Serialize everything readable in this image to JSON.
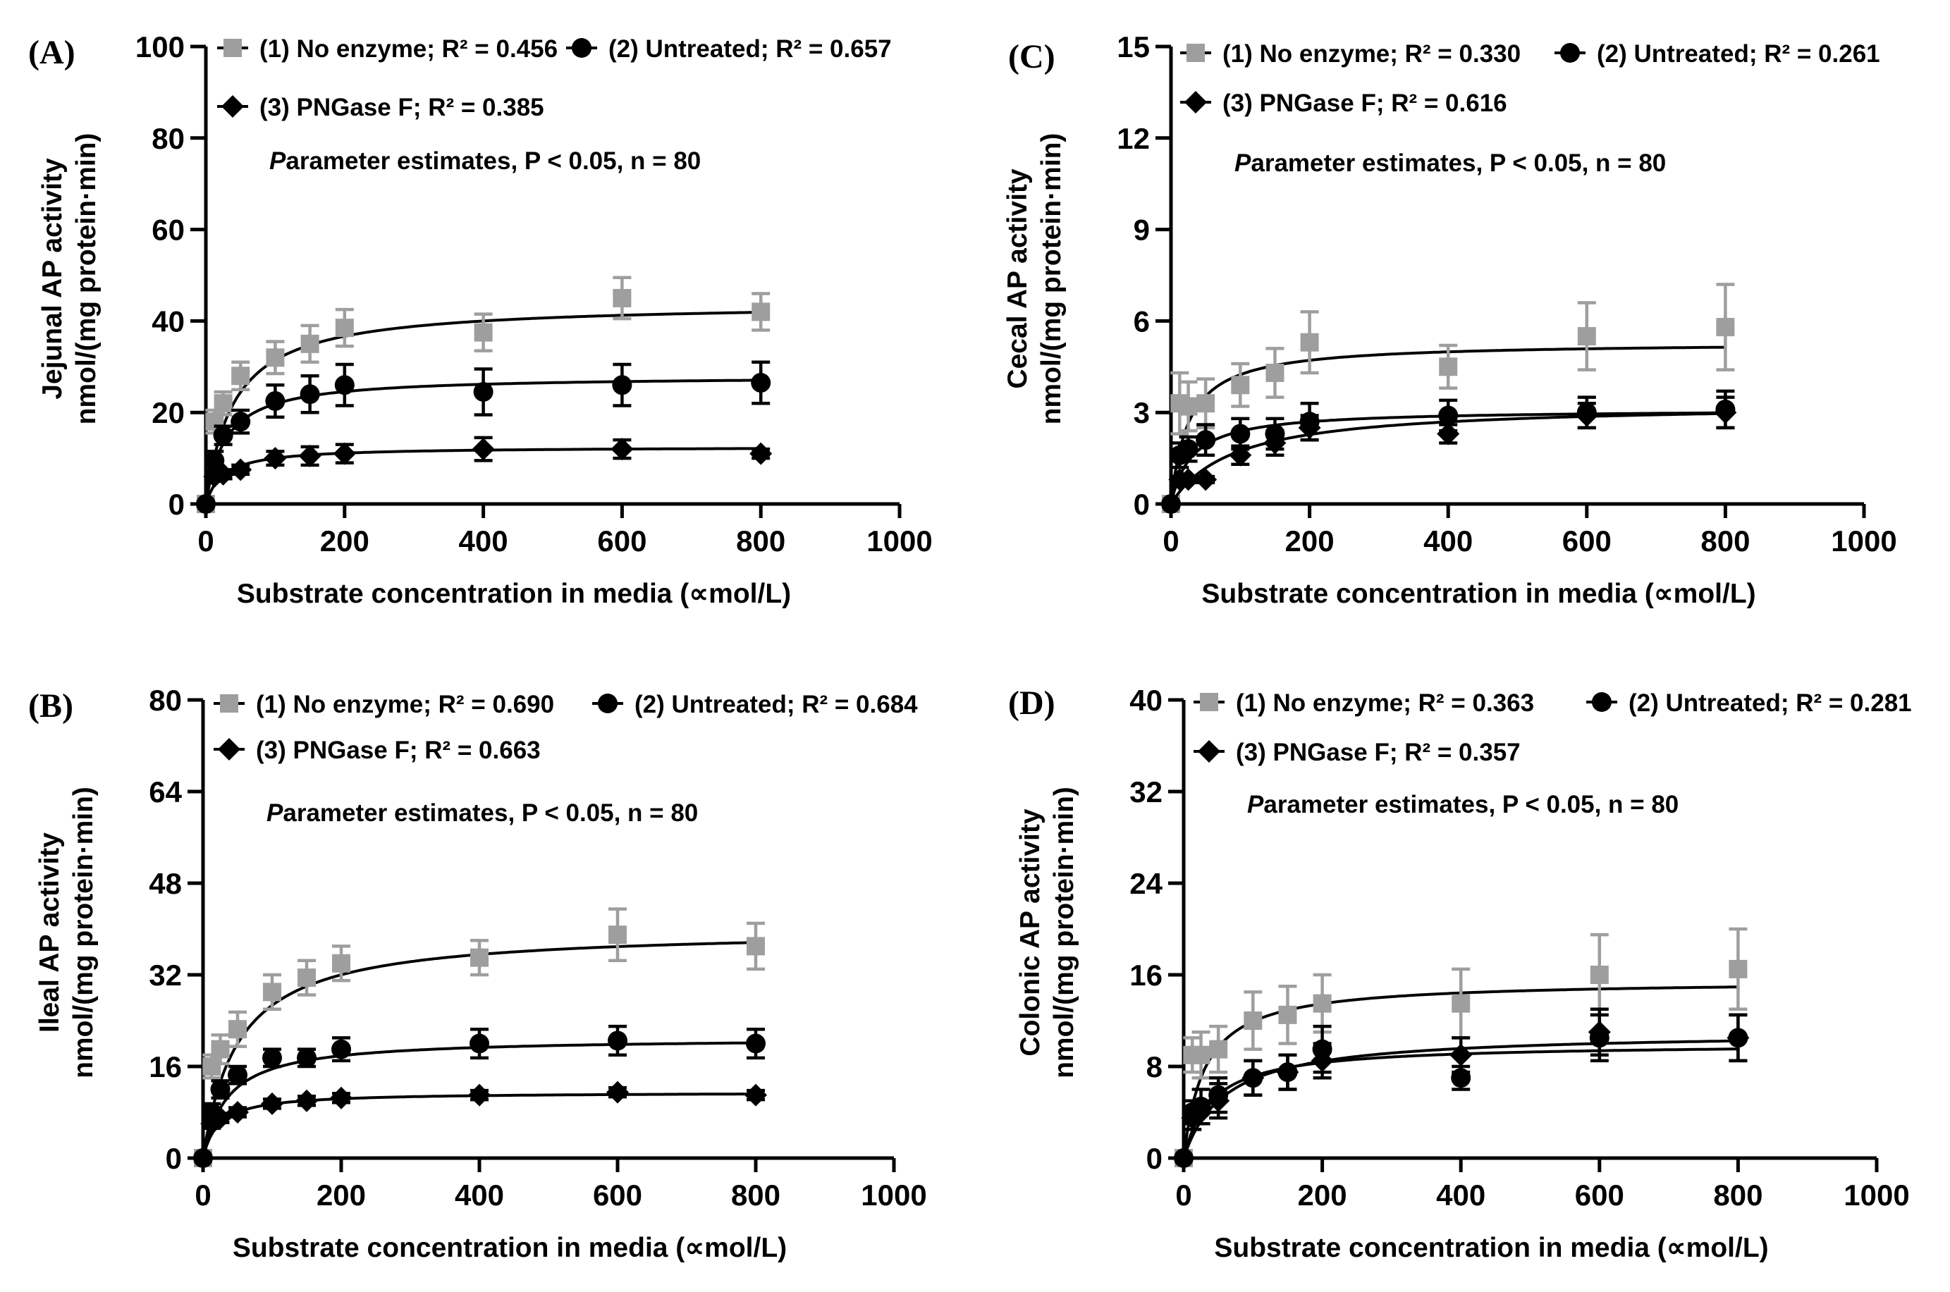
{
  "chart_data": [
    {
      "type": "scatter",
      "panel": "(A)",
      "ylabel_lines": [
        "Jejunal AP activity",
        "nmol/(mg protein·min)"
      ],
      "xlabel": "Substrate concentration in media (∝mol/L)",
      "xlim": [
        0,
        1000
      ],
      "xticks": [
        0,
        200,
        400,
        600,
        800,
        1000
      ],
      "ylim": [
        0,
        100
      ],
      "yticks": [
        0,
        20,
        40,
        60,
        80,
        100
      ],
      "annotation": "Parameter estimates, P < 0.05, n = 80",
      "series": [
        {
          "name": "(1) No enzyme;",
          "r2": "R² = 0.456",
          "marker": "square",
          "color": "#9e9e9e",
          "x": [
            0,
            12.5,
            25,
            50,
            100,
            150,
            200,
            400,
            600,
            800
          ],
          "y": [
            0,
            18,
            22,
            28,
            32,
            35,
            38.5,
            37.5,
            45,
            42
          ],
          "err": [
            0,
            2.5,
            2.5,
            3,
            3.5,
            4,
            4,
            4,
            4.5,
            4
          ],
          "fit": {
            "vmax": 44,
            "km": 40
          }
        },
        {
          "name": "(2) Untreated;",
          "r2": "R² = 0.657",
          "marker": "circle",
          "color": "#000000",
          "x": [
            0,
            12.5,
            25,
            50,
            100,
            150,
            200,
            400,
            600,
            800
          ],
          "y": [
            0,
            9.5,
            15,
            18,
            22.5,
            24,
            26,
            24.5,
            26,
            26.5
          ],
          "err": [
            0,
            2,
            2,
            2.5,
            3.5,
            4,
            4.5,
            5,
            4.5,
            4.5
          ],
          "fit": {
            "vmax": 28,
            "km": 28
          }
        },
        {
          "name": "(3) PNGase F;",
          "r2": "R² = 0.385",
          "marker": "diamond",
          "color": "#000000",
          "x": [
            0,
            12.5,
            25,
            50,
            100,
            150,
            200,
            400,
            600,
            800
          ],
          "y": [
            0,
            6,
            6.5,
            7.5,
            10,
            10.5,
            11,
            12,
            12,
            11
          ],
          "err": [
            0,
            1,
            1,
            1,
            1.5,
            2,
            2,
            2.5,
            2,
            1
          ],
          "fit": {
            "vmax": 12.5,
            "km": 25
          }
        }
      ]
    },
    {
      "type": "scatter",
      "panel": "(B)",
      "ylabel_lines": [
        "Ileal AP activity",
        "nmol/(mg protein·min)"
      ],
      "xlabel": "Substrate concentration in media (∝mol/L)",
      "xlim": [
        0,
        1000
      ],
      "xticks": [
        0,
        200,
        400,
        600,
        800,
        1000
      ],
      "ylim": [
        0,
        80
      ],
      "yticks": [
        0,
        16,
        32,
        48,
        64,
        80
      ],
      "annotation": "Parameter estimates, P < 0.05, n = 80",
      "series": [
        {
          "name": "(1) No enzyme;",
          "r2": "R² = 0.690",
          "marker": "square",
          "color": "#9e9e9e",
          "x": [
            0,
            12.5,
            25,
            50,
            100,
            150,
            200,
            400,
            600,
            800
          ],
          "y": [
            0,
            16,
            19,
            22.5,
            29,
            31.5,
            34,
            35,
            39,
            37
          ],
          "err": [
            0,
            2,
            2.5,
            3,
            3,
            3,
            3,
            3,
            4.5,
            4
          ],
          "fit": {
            "vmax": 40,
            "km": 50
          }
        },
        {
          "name": "(2) Untreated;",
          "r2": "R² = 0.684",
          "marker": "circle",
          "color": "#000000",
          "x": [
            0,
            12.5,
            25,
            50,
            100,
            150,
            200,
            400,
            600,
            800
          ],
          "y": [
            0,
            8,
            12,
            14.5,
            17.5,
            17.5,
            19,
            20,
            20.5,
            20
          ],
          "err": [
            0,
            1.5,
            1.5,
            1.5,
            1.5,
            1.5,
            2,
            2.5,
            2.5,
            2.5
          ],
          "fit": {
            "vmax": 21,
            "km": 35
          }
        },
        {
          "name": "(3) PNGase F;",
          "r2": "R² = 0.663",
          "marker": "diamond",
          "color": "#000000",
          "x": [
            0,
            12.5,
            25,
            50,
            100,
            150,
            200,
            400,
            600,
            800
          ],
          "y": [
            0,
            6,
            7,
            8,
            9.5,
            10,
            10.5,
            11,
            11.5,
            11
          ],
          "err": [
            0,
            0.8,
            0.8,
            0.8,
            0.8,
            0.8,
            0.8,
            0.8,
            0.8,
            0.8
          ],
          "fit": {
            "vmax": 11.5,
            "km": 22
          }
        }
      ]
    },
    {
      "type": "scatter",
      "panel": "(C)",
      "ylabel_lines": [
        "Cecal AP activity",
        "nmol/(mg protein·min)"
      ],
      "xlabel": "Substrate concentration in media (∝mol/L)",
      "xlim": [
        0,
        1000
      ],
      "xticks": [
        0,
        200,
        400,
        600,
        800,
        1000
      ],
      "ylim": [
        0,
        15
      ],
      "yticks": [
        0,
        3,
        6,
        9,
        12,
        15
      ],
      "annotation": "Parameter estimates, P < 0.05, n = 80",
      "series": [
        {
          "name": "(1) No enzyme;",
          "r2": "R² = 0.330",
          "marker": "square",
          "color": "#9e9e9e",
          "x": [
            0,
            12.5,
            25,
            50,
            100,
            150,
            200,
            400,
            600,
            800
          ],
          "y": [
            0,
            3.3,
            3.2,
            3.3,
            3.9,
            4.3,
            5.3,
            4.5,
            5.5,
            5.8
          ],
          "err": [
            0,
            1,
            0.8,
            0.8,
            0.7,
            0.8,
            1,
            0.7,
            1.1,
            1.4
          ],
          "fit": {
            "vmax": 5.3,
            "km": 25
          }
        },
        {
          "name": "(2) Untreated;",
          "r2": "R² = 0.261",
          "marker": "circle",
          "color": "#000000",
          "x": [
            0,
            12.5,
            25,
            50,
            100,
            150,
            200,
            400,
            600,
            800
          ],
          "y": [
            0,
            1.6,
            1.8,
            2.1,
            2.3,
            2.3,
            2.7,
            2.9,
            3,
            3.1
          ],
          "err": [
            0,
            0.4,
            0.4,
            0.5,
            0.5,
            0.5,
            0.6,
            0.5,
            0.5,
            0.6
          ],
          "fit": {
            "vmax": 3.1,
            "km": 30
          }
        },
        {
          "name": "(3) PNGase F;",
          "r2": "R² = 0.616",
          "marker": "diamond",
          "color": "#000000",
          "x": [
            0,
            12.5,
            25,
            50,
            100,
            150,
            200,
            400,
            600,
            800
          ],
          "y": [
            0,
            0.8,
            0.8,
            0.8,
            1.6,
            2,
            2.5,
            2.3,
            2.9,
            3
          ],
          "err": [
            0,
            0.1,
            0.1,
            0.1,
            0.3,
            0.4,
            0.4,
            0.3,
            0.4,
            0.5
          ],
          "fit": {
            "vmax": 3.3,
            "km": 90
          }
        }
      ]
    },
    {
      "type": "scatter",
      "panel": "(D)",
      "ylabel_lines": [
        "Colonic AP activity",
        "nmol/(mg protein·min)"
      ],
      "xlabel": "Substrate concentration in media (∝mol/L)",
      "xlim": [
        0,
        1000
      ],
      "xticks": [
        0,
        200,
        400,
        600,
        800,
        1000
      ],
      "ylim": [
        0,
        40
      ],
      "yticks": [
        0,
        8,
        16,
        24,
        32,
        40
      ],
      "annotation": "Parameter estimates, P < 0.05, n = 80",
      "series": [
        {
          "name": "(1) No enzyme;",
          "r2": "R² = 0.363",
          "marker": "square",
          "color": "#9e9e9e",
          "x": [
            0,
            12.5,
            25,
            50,
            100,
            150,
            200,
            400,
            600,
            800
          ],
          "y": [
            0,
            9,
            9,
            9.5,
            12,
            12.5,
            13.5,
            13.5,
            16,
            16.5
          ],
          "err": [
            0,
            1.5,
            2,
            2,
            2.5,
            2.5,
            2.5,
            3,
            3.5,
            3.5
          ],
          "fit": {
            "vmax": 15.5,
            "km": 30
          }
        },
        {
          "name": "(2) Untreated;",
          "r2": "R² = 0.281",
          "marker": "circle",
          "color": "#000000",
          "x": [
            0,
            12.5,
            25,
            50,
            100,
            150,
            200,
            400,
            600,
            800
          ],
          "y": [
            0,
            4,
            4.5,
            5.5,
            7,
            7.5,
            9.5,
            7,
            10.5,
            10.5
          ],
          "err": [
            0,
            1,
            1.5,
            1.5,
            1.5,
            1.5,
            2,
            1,
            2,
            2
          ],
          "fit": {
            "vmax": 10,
            "km": 40
          }
        },
        {
          "name": "(3) PNGase F;",
          "r2": "R² = 0.357",
          "marker": "diamond",
          "color": "#000000",
          "x": [
            0,
            12.5,
            25,
            50,
            100,
            150,
            200,
            400,
            600,
            800
          ],
          "y": [
            0,
            3.5,
            4,
            5,
            7,
            7.5,
            8.5,
            9,
            11,
            10.5
          ],
          "err": [
            0,
            1,
            1,
            1.5,
            1.5,
            1.5,
            1.5,
            1.5,
            2,
            2
          ],
          "fit": {
            "vmax": 11,
            "km": 60
          }
        }
      ]
    }
  ]
}
